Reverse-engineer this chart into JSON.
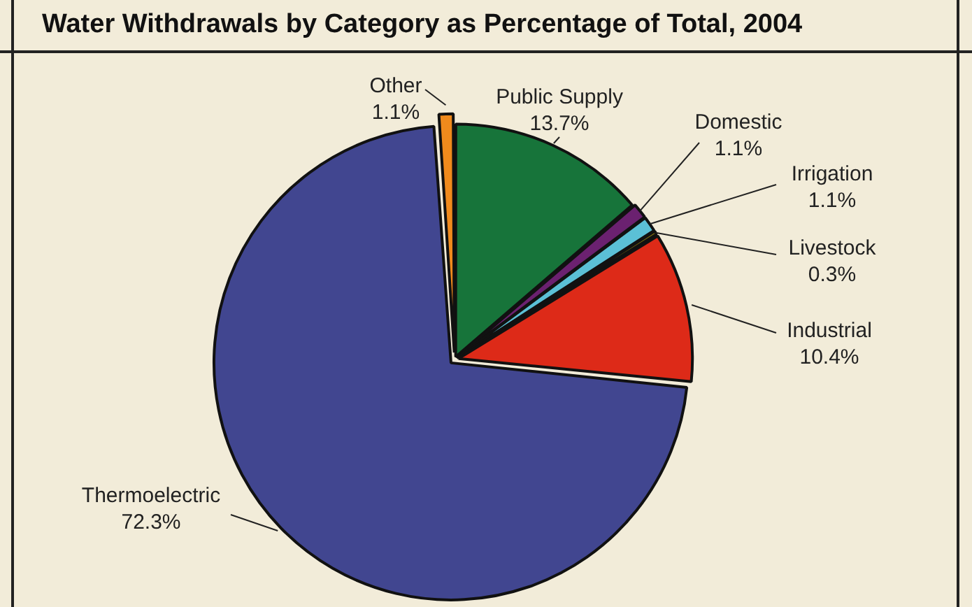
{
  "chart_data": {
    "type": "pie",
    "title": "Water Withdrawals by Category as Percentage of Total, 2004",
    "categories": [
      "Public Supply",
      "Domestic",
      "Irrigation",
      "Livestock",
      "Industrial",
      "Thermoelectric",
      "Other"
    ],
    "values": [
      13.7,
      1.1,
      1.1,
      0.3,
      10.4,
      72.3,
      1.1
    ],
    "value_labels": [
      "13.7%",
      "1.1%",
      "1.1%",
      "0.3%",
      "10.4%",
      "72.3%",
      "1.1%"
    ],
    "colors": [
      "#17743a",
      "#6b2170",
      "#5bc0d6",
      "#8a7a10",
      "#dd2a18",
      "#414690",
      "#f08a1c"
    ],
    "legend": false
  }
}
